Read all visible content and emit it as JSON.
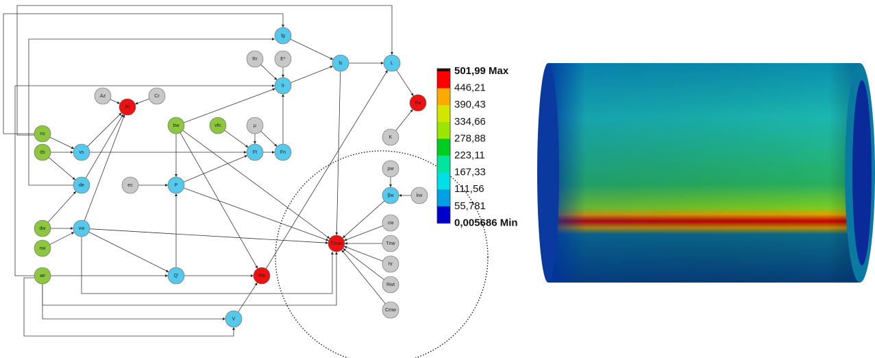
{
  "diagram": {
    "nodes": [
      {
        "label": "lg"
      },
      {
        "label": "lr"
      },
      {
        "label": "ls"
      },
      {
        "label": "L"
      },
      {
        "label": "Rr"
      },
      {
        "label": "E*"
      },
      {
        "label": "Az"
      },
      {
        "label": "Cr"
      },
      {
        "label": "Rt"
      },
      {
        "label": "Ra"
      },
      {
        "label": "ns"
      },
      {
        "label": "ds"
      },
      {
        "label": "vs"
      },
      {
        "label": "bw"
      },
      {
        "label": "vfn"
      },
      {
        "label": "μ"
      },
      {
        "label": "Ft"
      },
      {
        "label": "Fn"
      },
      {
        "label": "K"
      },
      {
        "label": "de"
      },
      {
        "label": "ec"
      },
      {
        "label": "P"
      },
      {
        "label": "ρw"
      },
      {
        "label": "βw"
      },
      {
        "label": "kw"
      },
      {
        "label": "dw"
      },
      {
        "label": "vw"
      },
      {
        "label": "cw"
      },
      {
        "label": "nw"
      },
      {
        "label": "Tmax"
      },
      {
        "label": "Tnw"
      },
      {
        "label": "hr"
      },
      {
        "label": "ae"
      },
      {
        "label": "Q'"
      },
      {
        "label": "Rw"
      },
      {
        "label": "Rwt"
      },
      {
        "label": "Cmw"
      },
      {
        "label": "V"
      }
    ]
  },
  "colorbar": {
    "labels": [
      "501,99 Max",
      "446,21",
      "390,43",
      "334,66",
      "278,88",
      "223,11",
      "167,33",
      "111,56",
      "55,781",
      "0,005686 Min"
    ],
    "colors": [
      "#ff0000",
      "#ffaa00",
      "#d2e600",
      "#9be600",
      "#00cc22",
      "#00e6a0",
      "#00e0e6",
      "#00a0e6",
      "#0000cc"
    ]
  }
}
